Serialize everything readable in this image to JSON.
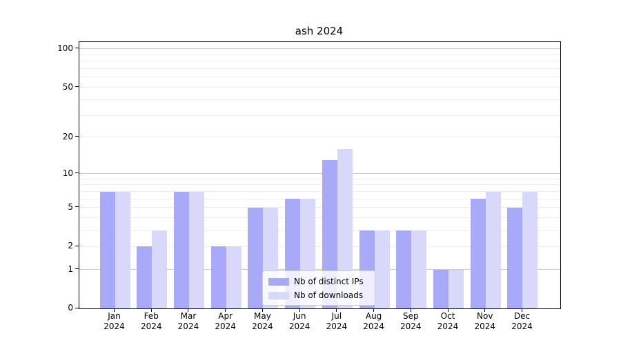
{
  "chart_data": {
    "type": "bar",
    "title": "ash 2024",
    "categories": [
      "Jan",
      "Feb",
      "Mar",
      "Apr",
      "May",
      "Jun",
      "Jul",
      "Aug",
      "Sep",
      "Oct",
      "Nov",
      "Dec"
    ],
    "category_year": "2024",
    "series": [
      {
        "name": "Nb of distinct IPs",
        "color": "#a9a9fa",
        "values": [
          7,
          2,
          7,
          2,
          5,
          6,
          13,
          3,
          3,
          1,
          6,
          5
        ]
      },
      {
        "name": "Nb of downloads",
        "color": "#d8d8fa",
        "values": [
          7,
          3,
          7,
          2,
          5,
          6,
          16,
          3,
          3,
          1,
          7,
          7
        ]
      }
    ],
    "yscale": "log1p",
    "ytick_values": [
      0,
      1,
      2,
      5,
      10,
      20,
      50,
      100
    ],
    "ylim": [
      0,
      113
    ],
    "xlabel": "",
    "ylabel": "",
    "grid": "horizontal",
    "legend_position": "lower-center",
    "colors": {
      "major_grid": "#c8c8c8",
      "minor_grid": "#ededed",
      "axis": "#000000",
      "background": "#ffffff"
    }
  }
}
